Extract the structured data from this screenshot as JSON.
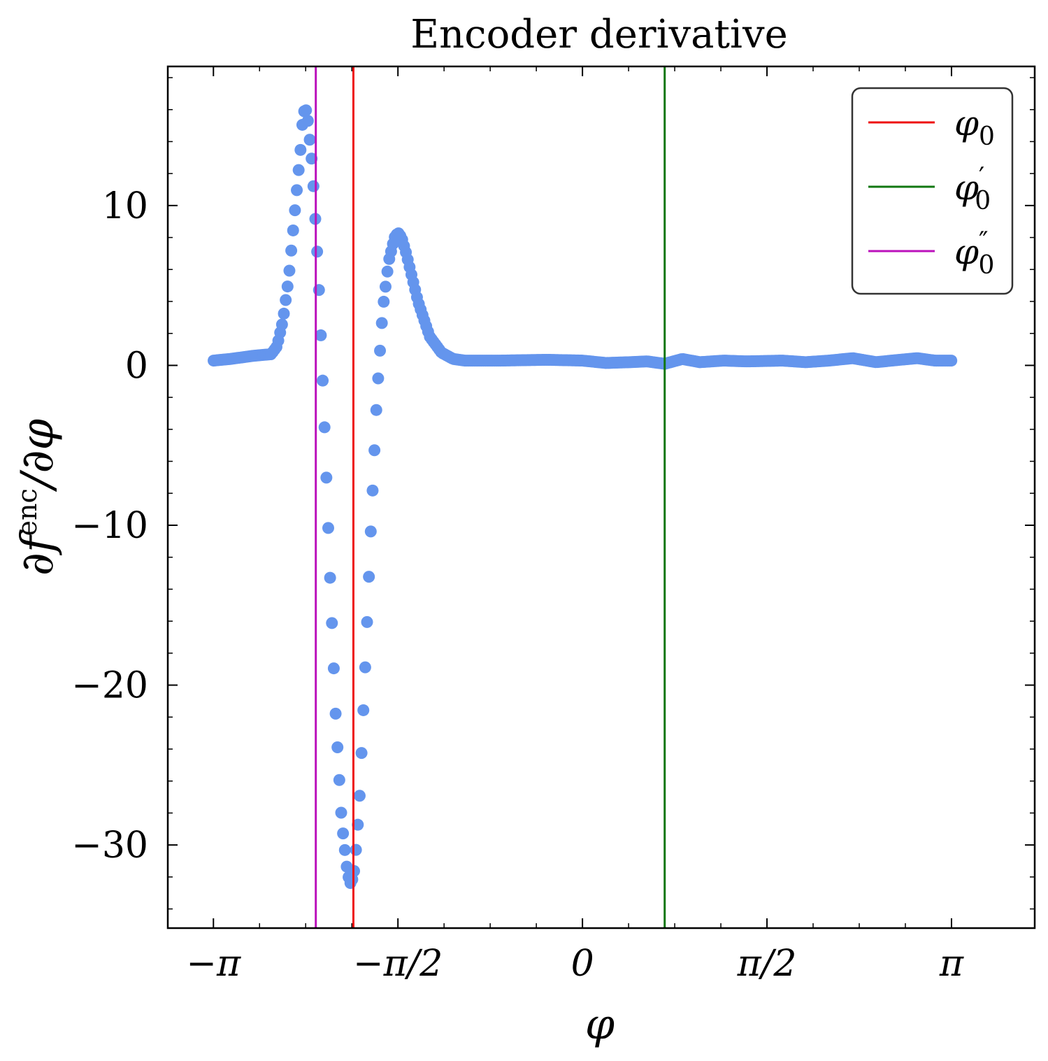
{
  "chart_data": {
    "type": "scatter",
    "title": "Encoder derivative",
    "xlabel": "φ",
    "ylabel_main": "∂f",
    "ylabel_sup": "enc",
    "ylabel_tail": "/∂φ",
    "xlim": [
      -3.53,
      3.85
    ],
    "ylim": [
      -35.2,
      18.7
    ],
    "xticks": [
      {
        "value": -3.14159,
        "label": "−π"
      },
      {
        "value": -1.5708,
        "label": "−π/2"
      },
      {
        "value": 0,
        "label": "0"
      },
      {
        "value": 1.5708,
        "label": "π/2"
      },
      {
        "value": 3.14159,
        "label": "π"
      }
    ],
    "yticks": [
      {
        "value": 10,
        "label": "10"
      },
      {
        "value": 0,
        "label": "0"
      },
      {
        "value": -10,
        "label": "−10"
      },
      {
        "value": -20,
        "label": "−20"
      },
      {
        "value": -30,
        "label": "−30"
      }
    ],
    "vlines": [
      {
        "name": "phi0",
        "x": -1.95,
        "color": "#ee1111",
        "label_base": "φ",
        "label_sub": "0",
        "label_prime": ""
      },
      {
        "name": "phi0-prime",
        "x": 0.7,
        "color": "#117711",
        "label_base": "φ",
        "label_sub": "0",
        "label_prime": "′"
      },
      {
        "name": "phi0-double-prime",
        "x": -2.27,
        "color": "#bb11bb",
        "label_base": "φ",
        "label_sub": "0",
        "label_prime": "″"
      }
    ],
    "series": [
      {
        "name": "derivative",
        "color": "#6495ed",
        "n_points": 400,
        "points": [
          [
            -3.14,
            0.3
          ],
          [
            -3.0,
            0.4
          ],
          [
            -2.8,
            0.6
          ],
          [
            -2.65,
            0.7
          ],
          [
            -2.6,
            1.2
          ],
          [
            -2.55,
            2.8
          ],
          [
            -2.5,
            5.5
          ],
          [
            -2.45,
            9.5
          ],
          [
            -2.4,
            13.5
          ],
          [
            -2.38,
            15.5
          ],
          [
            -2.36,
            16.2
          ],
          [
            -2.34,
            15.5
          ],
          [
            -2.3,
            12.5
          ],
          [
            -2.25,
            6.0
          ],
          [
            -2.2,
            -3.0
          ],
          [
            -2.15,
            -13.0
          ],
          [
            -2.1,
            -22.0
          ],
          [
            -2.05,
            -28.5
          ],
          [
            -2.0,
            -31.8
          ],
          [
            -1.97,
            -32.5
          ],
          [
            -1.94,
            -31.5
          ],
          [
            -1.9,
            -27.5
          ],
          [
            -1.85,
            -19.0
          ],
          [
            -1.8,
            -10.0
          ],
          [
            -1.75,
            -2.0
          ],
          [
            -1.7,
            3.5
          ],
          [
            -1.65,
            6.5
          ],
          [
            -1.6,
            8.0
          ],
          [
            -1.57,
            8.3
          ],
          [
            -1.54,
            8.0
          ],
          [
            -1.5,
            7.0
          ],
          [
            -1.4,
            4.0
          ],
          [
            -1.3,
            1.8
          ],
          [
            -1.2,
            0.8
          ],
          [
            -1.1,
            0.4
          ],
          [
            -1.0,
            0.3
          ],
          [
            -0.7,
            0.3
          ],
          [
            -0.3,
            0.35
          ],
          [
            0.0,
            0.3
          ],
          [
            0.2,
            0.15
          ],
          [
            0.4,
            0.2
          ],
          [
            0.55,
            0.25
          ],
          [
            0.7,
            0.1
          ],
          [
            0.85,
            0.4
          ],
          [
            1.0,
            0.2
          ],
          [
            1.2,
            0.3
          ],
          [
            1.4,
            0.25
          ],
          [
            1.7,
            0.3
          ],
          [
            1.9,
            0.2
          ],
          [
            2.1,
            0.3
          ],
          [
            2.3,
            0.45
          ],
          [
            2.5,
            0.2
          ],
          [
            2.7,
            0.35
          ],
          [
            2.85,
            0.45
          ],
          [
            3.0,
            0.3
          ],
          [
            3.14,
            0.3
          ]
        ]
      }
    ],
    "legend_position": "top-right"
  }
}
